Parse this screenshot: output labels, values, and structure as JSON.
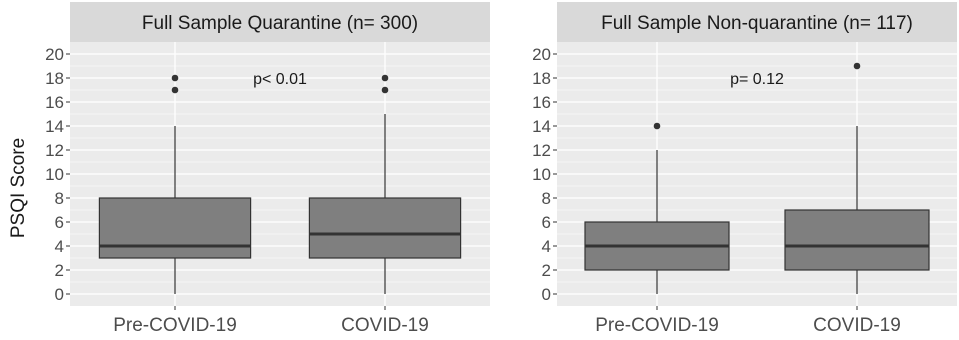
{
  "chart_data": {
    "type": "boxplot",
    "ylabel": "PSQI Score",
    "ylim": [
      -1,
      21
    ],
    "yticks": [
      "0",
      "2",
      "4",
      "6",
      "8",
      "10",
      "12",
      "14",
      "16",
      "18",
      "20"
    ],
    "grid": true,
    "panel_background": "#ebebeb",
    "strip_background": "#d9d9d9",
    "box_fill": "#7f7f7f",
    "panels": [
      {
        "title": "Full Sample Quarantine (n= 300)",
        "annotation": "p< 0.01",
        "annotation_at": [
          1.5,
          18
        ],
        "categories": [
          "Pre-COVID-19",
          "COVID-19"
        ],
        "boxes": [
          {
            "min": 0,
            "q1": 3,
            "median": 4,
            "q3": 8,
            "max": 14,
            "outliers": [
              17,
              18
            ]
          },
          {
            "min": 0,
            "q1": 3,
            "median": 5,
            "q3": 8,
            "max": 15,
            "outliers": [
              17,
              18
            ]
          }
        ]
      },
      {
        "title": "Full Sample Non-quarantine (n= 117)",
        "annotation": "p= 0.12",
        "annotation_at": [
          1.5,
          18
        ],
        "categories": [
          "Pre-COVID-19",
          "COVID-19"
        ],
        "boxes": [
          {
            "min": 0,
            "q1": 2,
            "median": 4,
            "q3": 6,
            "max": 12,
            "outliers": [
              14
            ]
          },
          {
            "min": 0,
            "q1": 2,
            "median": 4,
            "q3": 7,
            "max": 14,
            "outliers": [
              19
            ]
          }
        ]
      }
    ]
  }
}
